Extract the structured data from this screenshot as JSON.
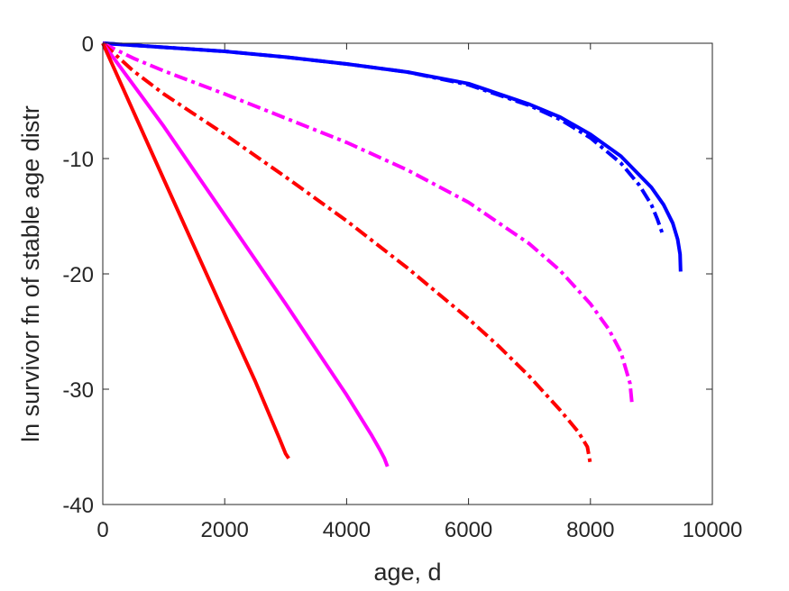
{
  "chart_data": {
    "type": "line",
    "title": "",
    "xlabel": "age, d",
    "ylabel": "ln survivor fn of stable age distr",
    "xlim": [
      0,
      10000
    ],
    "ylim": [
      -40,
      0
    ],
    "xticks": [
      0,
      2000,
      4000,
      6000,
      8000,
      10000
    ],
    "yticks": [
      0,
      -10,
      -20,
      -30,
      -40
    ],
    "xtick_labels": [
      "0",
      "2000",
      "4000",
      "6000",
      "8000",
      "10000"
    ],
    "ytick_labels": [
      "0",
      "-10",
      "-20",
      "-30",
      "-40"
    ],
    "grid": false,
    "legend": "none",
    "series": [
      {
        "color": "#0000ff",
        "style": "dashdot",
        "x": [
          0,
          1000,
          2000,
          3000,
          4000,
          5000,
          6000,
          7000,
          7500,
          8000,
          8500,
          8800,
          9000,
          9100,
          9180
        ],
        "y": [
          0,
          -0.35,
          -0.7,
          -1.2,
          -1.8,
          -2.5,
          -3.6,
          -5.4,
          -6.6,
          -8.2,
          -10.4,
          -12.3,
          -14.0,
          -15.3,
          -16.5
        ]
      },
      {
        "color": "#0000ff",
        "style": "solid",
        "x": [
          0,
          1000,
          2000,
          3000,
          4000,
          5000,
          6000,
          7000,
          7500,
          8000,
          8500,
          9000,
          9200,
          9350,
          9430,
          9470,
          9480
        ],
        "y": [
          0,
          -0.35,
          -0.7,
          -1.2,
          -1.8,
          -2.5,
          -3.5,
          -5.3,
          -6.4,
          -7.9,
          -9.8,
          -12.5,
          -14.0,
          -15.6,
          -17.0,
          -18.3,
          -19.8
        ]
      },
      {
        "color": "#ff00ff",
        "style": "dashdot",
        "x": [
          0,
          500,
          1000,
          2000,
          3000,
          4000,
          5000,
          6000,
          7000,
          7500,
          8000,
          8300,
          8500,
          8650,
          8680
        ],
        "y": [
          0,
          -1.3,
          -2.4,
          -4.4,
          -6.5,
          -8.6,
          -11.0,
          -13.8,
          -17.4,
          -19.7,
          -22.6,
          -24.8,
          -26.8,
          -29.5,
          -31.2
        ]
      },
      {
        "color": "#ff0000",
        "style": "dashdot",
        "x": [
          0,
          500,
          1000,
          2000,
          3000,
          4000,
          5000,
          6000,
          6500,
          7000,
          7500,
          7800,
          7950,
          8000
        ],
        "y": [
          0,
          -2.4,
          -4.4,
          -7.9,
          -11.6,
          -15.4,
          -19.5,
          -23.9,
          -26.3,
          -28.9,
          -31.8,
          -33.7,
          -35.0,
          -36.5
        ]
      },
      {
        "color": "#ff00ff",
        "style": "solid",
        "x": [
          0,
          1000,
          2000,
          3000,
          4000,
          4400,
          4550,
          4620,
          4670
        ],
        "y": [
          0,
          -7.2,
          -14.9,
          -22.6,
          -30.5,
          -33.9,
          -35.3,
          -36.0,
          -36.7
        ]
      },
      {
        "color": "#ff0000",
        "style": "solid",
        "x": [
          0,
          1000,
          2000,
          2500,
          2900,
          3000,
          3050
        ],
        "y": [
          0,
          -11.8,
          -23.5,
          -29.3,
          -34.3,
          -35.6,
          -36.0
        ]
      }
    ]
  }
}
